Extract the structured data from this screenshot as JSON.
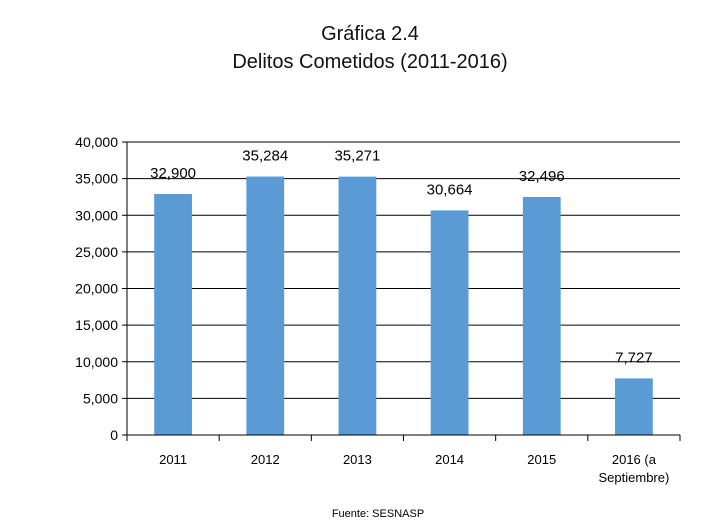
{
  "header": {
    "title": "Gráfica 2.4",
    "subtitle": "Delitos Cometidos (2011-2016)"
  },
  "chart_data": {
    "type": "bar",
    "title": "Gráfica 2.4",
    "subtitle": "Delitos Cometidos (2011-2016)",
    "xlabel": "",
    "ylabel": "",
    "categories": [
      "2011",
      "2012",
      "2013",
      "2014",
      "2015",
      "2016 (a Septiembre)"
    ],
    "category_lines": [
      [
        "2011"
      ],
      [
        "2012"
      ],
      [
        "2013"
      ],
      [
        "2014"
      ],
      [
        "2015"
      ],
      [
        "2016 (a",
        "Septiembre)"
      ]
    ],
    "values": [
      32900,
      35284,
      35271,
      30664,
      32496,
      7727
    ],
    "data_labels": [
      "32,900",
      "35,284",
      "35,271",
      "30,664",
      "32,496",
      "7,727"
    ],
    "ylim": [
      0,
      40000
    ],
    "yticks": [
      0,
      5000,
      10000,
      15000,
      20000,
      25000,
      30000,
      35000,
      40000
    ],
    "ytick_labels": [
      "0",
      "5,000",
      "10,000",
      "15,000",
      "20,000",
      "25,000",
      "30,000",
      "35,000",
      "40,000"
    ],
    "grid": true,
    "legend": "none",
    "bar_color": "#5b9bd5",
    "grid_color": "#000000",
    "source": "Fuente: SESNASP"
  }
}
